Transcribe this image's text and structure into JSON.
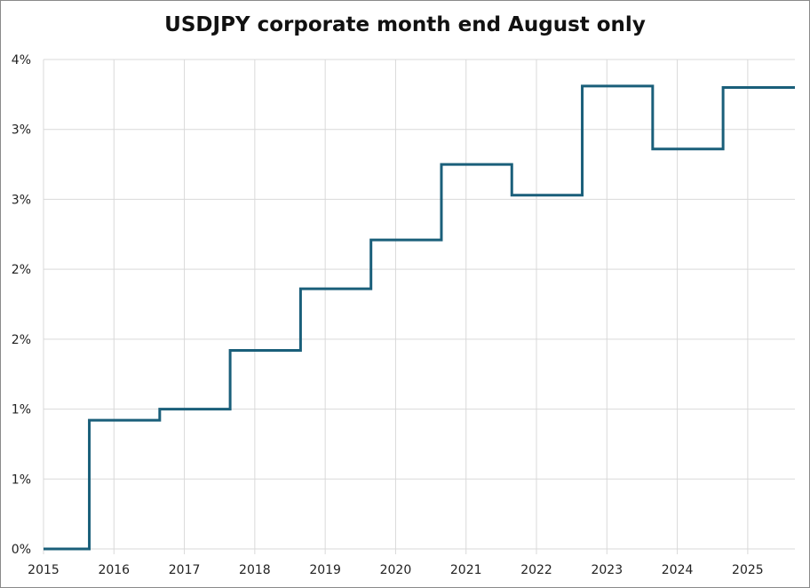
{
  "chart_data": {
    "type": "line",
    "step": true,
    "title": "USDJPY corporate month end August only",
    "xlabel": "",
    "ylabel": "",
    "xlim": [
      2015,
      2025.67
    ],
    "ylim": [
      0,
      3.5
    ],
    "x_ticks": [
      "2015",
      "2016",
      "2017",
      "2018",
      "2019",
      "2020",
      "2021",
      "2022",
      "2023",
      "2024",
      "2025"
    ],
    "y_ticks": [
      {
        "value": 0,
        "label": "0%"
      },
      {
        "value": 0.5,
        "label": "1%"
      },
      {
        "value": 1.0,
        "label": "1%"
      },
      {
        "value": 1.5,
        "label": "2%"
      },
      {
        "value": 2.0,
        "label": "2%"
      },
      {
        "value": 2.5,
        "label": "3%"
      },
      {
        "value": 3.0,
        "label": "3%"
      },
      {
        "value": 3.5,
        "label": "4%"
      }
    ],
    "grid": true,
    "series": [
      {
        "name": "USDJPY corporate month end August",
        "color": "#1a5f7a",
        "x": [
          2015.0,
          2015.65,
          2016.65,
          2017.65,
          2018.65,
          2019.65,
          2020.65,
          2021.65,
          2022.65,
          2023.65,
          2024.65,
          2025.67
        ],
        "y": [
          0.0,
          0.92,
          1.0,
          1.42,
          1.86,
          2.21,
          2.75,
          2.53,
          3.31,
          2.86,
          3.3,
          3.3
        ]
      }
    ]
  }
}
